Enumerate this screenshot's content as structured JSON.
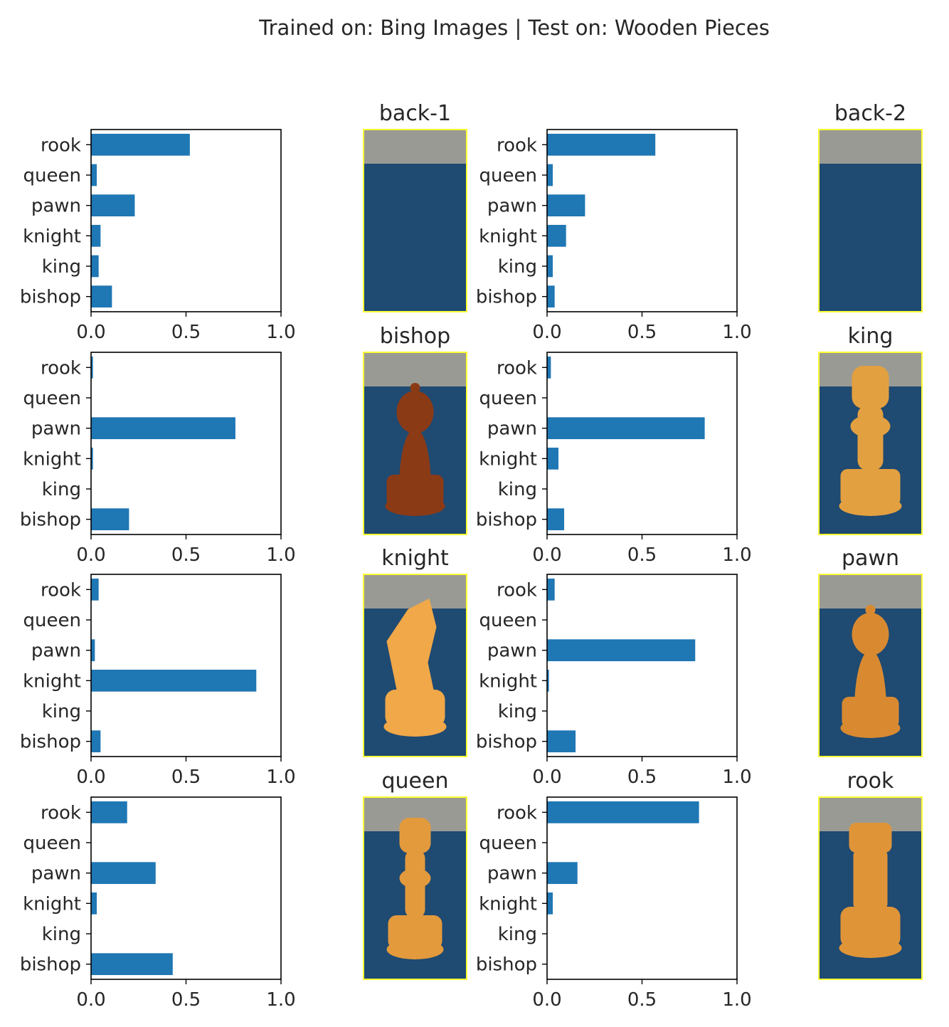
{
  "title": "Trained on: Bing Images |  Test on: Wooden Pieces",
  "colors": {
    "bar": "#1f77b4",
    "frame": "#000000",
    "image_border": "#ffff33",
    "text": "#262626"
  },
  "chart_data": [
    {
      "type": "bar",
      "orientation": "horizontal",
      "panel": "back-1",
      "categories": [
        "rook",
        "queen",
        "pawn",
        "knight",
        "king",
        "bishop"
      ],
      "values": [
        0.52,
        0.03,
        0.23,
        0.05,
        0.04,
        0.11
      ],
      "xlim": [
        0,
        1
      ],
      "xticks": [
        "0.0",
        "0.5",
        "1.0"
      ]
    },
    {
      "type": "bar",
      "orientation": "horizontal",
      "panel": "back-2",
      "categories": [
        "rook",
        "queen",
        "pawn",
        "knight",
        "king",
        "bishop"
      ],
      "values": [
        0.57,
        0.03,
        0.2,
        0.1,
        0.03,
        0.04
      ],
      "xlim": [
        0,
        1
      ],
      "xticks": [
        "0.0",
        "0.5",
        "1.0"
      ]
    },
    {
      "type": "bar",
      "orientation": "horizontal",
      "panel": "bishop",
      "categories": [
        "rook",
        "queen",
        "pawn",
        "knight",
        "king",
        "bishop"
      ],
      "values": [
        0.01,
        0.0,
        0.76,
        0.01,
        0.0,
        0.2
      ],
      "xlim": [
        0,
        1
      ],
      "xticks": [
        "0.0",
        "0.5",
        "1.0"
      ]
    },
    {
      "type": "bar",
      "orientation": "horizontal",
      "panel": "king",
      "categories": [
        "rook",
        "queen",
        "pawn",
        "knight",
        "king",
        "bishop"
      ],
      "values": [
        0.02,
        0.0,
        0.83,
        0.06,
        0.0,
        0.09
      ],
      "xlim": [
        0,
        1
      ],
      "xticks": [
        "0.0",
        "0.5",
        "1.0"
      ]
    },
    {
      "type": "bar",
      "orientation": "horizontal",
      "panel": "knight",
      "categories": [
        "rook",
        "queen",
        "pawn",
        "knight",
        "king",
        "bishop"
      ],
      "values": [
        0.04,
        0.0,
        0.02,
        0.87,
        0.0,
        0.05
      ],
      "xlim": [
        0,
        1
      ],
      "xticks": [
        "0.0",
        "0.5",
        "1.0"
      ]
    },
    {
      "type": "bar",
      "orientation": "horizontal",
      "panel": "pawn",
      "categories": [
        "rook",
        "queen",
        "pawn",
        "knight",
        "king",
        "bishop"
      ],
      "values": [
        0.04,
        0.0,
        0.78,
        0.01,
        0.0,
        0.15
      ],
      "xlim": [
        0,
        1
      ],
      "xticks": [
        "0.0",
        "0.5",
        "1.0"
      ]
    },
    {
      "type": "bar",
      "orientation": "horizontal",
      "panel": "queen",
      "categories": [
        "rook",
        "queen",
        "pawn",
        "knight",
        "king",
        "bishop"
      ],
      "values": [
        0.19,
        0.0,
        0.34,
        0.03,
        0.0,
        0.43
      ],
      "xlim": [
        0,
        1
      ],
      "xticks": [
        "0.0",
        "0.5",
        "1.0"
      ]
    },
    {
      "type": "bar",
      "orientation": "horizontal",
      "panel": "rook",
      "categories": [
        "rook",
        "queen",
        "pawn",
        "knight",
        "king",
        "bishop"
      ],
      "values": [
        0.8,
        0.0,
        0.16,
        0.03,
        0.0,
        0.0
      ],
      "xlim": [
        0,
        1
      ],
      "xticks": [
        "0.0",
        "0.5",
        "1.0"
      ]
    }
  ],
  "images": [
    {
      "label": "back-1",
      "piece": "none",
      "color": "#1f4a72"
    },
    {
      "label": "back-2",
      "piece": "none",
      "color": "#1f4a72"
    },
    {
      "label": "bishop",
      "piece": "pawn",
      "color": "#8b3a16"
    },
    {
      "label": "king",
      "piece": "king",
      "color": "#e3a040"
    },
    {
      "label": "knight",
      "piece": "knight",
      "color": "#f0a848"
    },
    {
      "label": "pawn",
      "piece": "pawn",
      "color": "#d98a30"
    },
    {
      "label": "queen",
      "piece": "queen",
      "color": "#e39a3c"
    },
    {
      "label": "rook",
      "piece": "rook",
      "color": "#e09438"
    }
  ]
}
